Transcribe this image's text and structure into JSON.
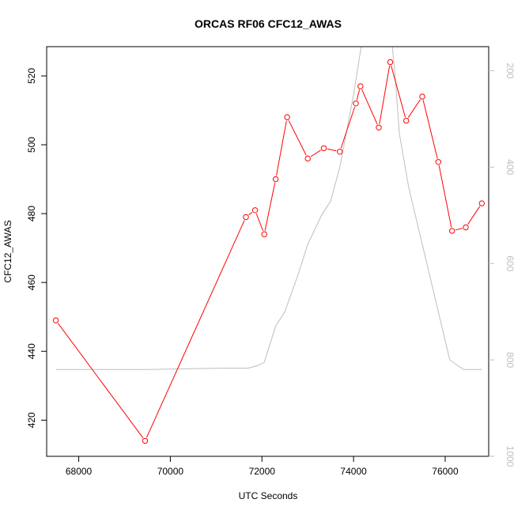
{
  "chart_data": {
    "type": "line",
    "title": "ORCAS RF06 CFC12_AWAS",
    "xlabel": "UTC Seconds",
    "ylabel": "CFC12_AWAS",
    "xlim": [
      67300,
      76950
    ],
    "ylim": [
      409.5,
      528.5
    ],
    "y2lim": [
      1000,
      150
    ],
    "y2_reversed": true,
    "xticks": [
      68000,
      70000,
      72000,
      74000,
      76000
    ],
    "yticks": [
      420,
      440,
      460,
      480,
      500,
      520
    ],
    "y2ticks": [
      200,
      400,
      600,
      800,
      1000
    ],
    "colors": {
      "primary": "#ff0000",
      "secondary": "#bebebe",
      "axis": "#000000"
    },
    "series": [
      {
        "axis": "left",
        "color": "#ff0000",
        "marker": "open-circle",
        "x": [
          67500,
          69450,
          71650,
          71850,
          72050,
          72300,
          72550,
          73000,
          73350,
          73700,
          74050,
          74150,
          74550,
          74800,
          75150,
          75500,
          75850,
          76150,
          76450,
          76800
        ],
        "y": [
          449,
          414,
          479,
          481,
          474,
          490,
          508,
          496,
          499,
          498,
          512,
          517,
          505,
          524,
          507,
          514,
          495,
          475,
          476,
          483
        ]
      },
      {
        "axis": "right",
        "color": "#bebebe",
        "marker": "none",
        "x": [
          67500,
          68500,
          69500,
          70500,
          71200,
          71700,
          71900,
          72050,
          72200,
          72300,
          72500,
          72800,
          73000,
          73300,
          73500,
          73700,
          73900,
          74000,
          74100,
          74200,
          74300,
          74400,
          74500,
          74600,
          74700,
          74800,
          74900,
          75000,
          75200,
          75500,
          75800,
          76100,
          76400,
          76700,
          76800
        ],
        "y": [
          820,
          820,
          820,
          818,
          817,
          817,
          812,
          805,
          760,
          730,
          700,
          620,
          560,
          500,
          470,
          400,
          300,
          250,
          190,
          130,
          90,
          60,
          50,
          55,
          80,
          110,
          200,
          330,
          440,
          560,
          680,
          800,
          820,
          820,
          820
        ]
      }
    ]
  }
}
